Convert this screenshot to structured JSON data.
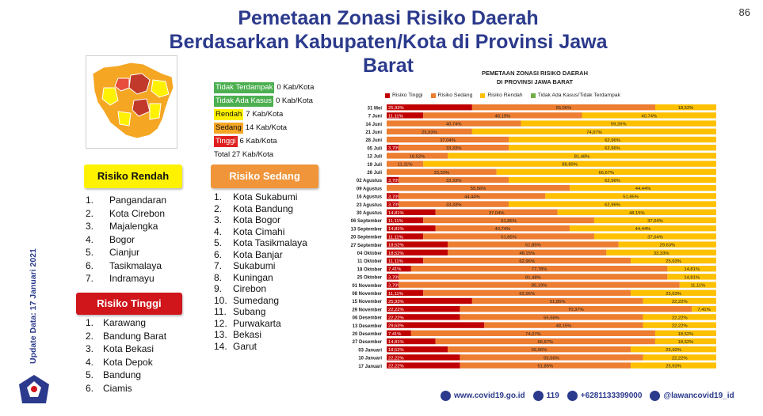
{
  "header": {
    "title_line1": "Pemetaan Zonasi Risiko Daerah",
    "title_line2": "Berdasarkan Kabupaten/Kota di Provinsi Jawa Barat",
    "page_number": "86"
  },
  "legend": {
    "tidak_terdampak": {
      "label": "Tidak Terdampak",
      "value": "0 Kab/Kota"
    },
    "tidak_ada_kasus": {
      "label": "Tidak Ada Kasus",
      "value": "0 Kab/Kota"
    },
    "rendah": {
      "label": "Rendah",
      "value": "7  Kab/Kota"
    },
    "sedang": {
      "label": "Sedang",
      "value": "14 Kab/Kota"
    },
    "tinggi": {
      "label": "Tinggi",
      "value": "6  Kab/Kota"
    },
    "total": "Total 27 Kab/Kota"
  },
  "risiko_rendah": {
    "title": "Risiko Rendah",
    "items": [
      {
        "n": "1.",
        "name": "Pangandaran"
      },
      {
        "n": "2.",
        "name": "Kota Cirebon"
      },
      {
        "n": "3.",
        "name": "Majalengka"
      },
      {
        "n": "4.",
        "name": "Bogor"
      },
      {
        "n": "5.",
        "name": "Cianjur"
      },
      {
        "n": "6.",
        "name": "Tasikmalaya"
      },
      {
        "n": "7.",
        "name": "Indramayu"
      }
    ]
  },
  "risiko_tinggi": {
    "title": "Risiko Tinggi",
    "items": [
      {
        "n": "1.",
        "name": "Karawang"
      },
      {
        "n": "2.",
        "name": "Bandung Barat"
      },
      {
        "n": "3.",
        "name": "Kota Bekasi"
      },
      {
        "n": "4.",
        "name": "Kota Depok"
      },
      {
        "n": "5.",
        "name": "Bandung"
      },
      {
        "n": "6.",
        "name": "Ciamis"
      }
    ]
  },
  "risiko_sedang": {
    "title": "Risiko Sedang",
    "items": [
      {
        "n": "1.",
        "name": "Kota Sukabumi"
      },
      {
        "n": "2.",
        "name": "Kota Bandung"
      },
      {
        "n": "3.",
        "name": "Kota Bogor"
      },
      {
        "n": "4.",
        "name": "Kota Cimahi"
      },
      {
        "n": "5.",
        "name": "Kota Tasikmalaya"
      },
      {
        "n": "6.",
        "name": "Kota Banjar"
      },
      {
        "n": "7.",
        "name": "Sukabumi"
      },
      {
        "n": "8.",
        "name": "Kuningan"
      },
      {
        "n": "9.",
        "name": "Cirebon"
      },
      {
        "n": "10.",
        "name": "Sumedang"
      },
      {
        "n": "11.",
        "name": "Subang"
      },
      {
        "n": "12.",
        "name": "Purwakarta"
      },
      {
        "n": "13.",
        "name": "Bekasi"
      },
      {
        "n": "14.",
        "name": "Garut"
      }
    ]
  },
  "update_date": "Update Data: 17 Januari 2021",
  "footer": {
    "website": "www.covid19.go.id",
    "hotline": "119",
    "whatsapp": "+6281133399000",
    "social": "@lawancovid19_id"
  },
  "colors": {
    "tinggi": "#c00000",
    "sedang": "#ed7d31",
    "rendah": "#ffc000",
    "tidak_ada": "#70ad47"
  },
  "chart_data": {
    "type": "bar",
    "orientation": "horizontal-stacked-100",
    "title_line1": "PEMETAAN ZONASI RISIKO DAERAH",
    "title_line2": "DI PROVINSI JAWA BARAT",
    "legend": [
      "Risiko Tinggi",
      "Risiko Sedang",
      "Risiko Rendah",
      "Tidak Ada Kasus/Tidak Terdampak"
    ],
    "legend_position": "top",
    "categories": [
      "31 Mei",
      "7 Juni",
      "14 Juni",
      "21 Juni",
      "28 Juni",
      "05 Juli",
      "12 Juli",
      "19 Juli",
      "26 Juli",
      "02 Agustus",
      "09 Agustus",
      "16 Agustus",
      "23 Agustus",
      "30 Agustus",
      "06 September",
      "13 September",
      "20 September",
      "27 September",
      "04 Oktober",
      "11 Oktober",
      "18 Oktober",
      "25 Oktober",
      "01 November",
      "08 November",
      "15 November",
      "29 November",
      "06 Desember",
      "13 Desember",
      "20 Desember",
      "27 Desember",
      "03 Januari",
      "10 Januari",
      "17 Januari"
    ],
    "series": [
      {
        "name": "Risiko Tinggi",
        "values": [
          25.93,
          11.11,
          0,
          0,
          0,
          3.7,
          0,
          0,
          0,
          3.7,
          0,
          3.7,
          3.7,
          14.81,
          11.11,
          14.81,
          11.11,
          18.52,
          18.52,
          11.11,
          7.41,
          3.7,
          3.7,
          11.11,
          25.93,
          22.22,
          22.22,
          29.63,
          7.41,
          14.81,
          18.52,
          22.22,
          22.22
        ]
      },
      {
        "name": "Risiko Sedang",
        "values": [
          55.56,
          48.15,
          40.74,
          25.93,
          37.04,
          33.33,
          18.52,
          11.11,
          33.33,
          33.33,
          55.56,
          44.44,
          33.33,
          37.04,
          51.85,
          40.74,
          51.85,
          51.85,
          48.15,
          62.96,
          77.78,
          81.48,
          85.19,
          62.96,
          51.85,
          70.37,
          55.56,
          48.15,
          74.07,
          66.67,
          55.56,
          55.56,
          51.85
        ]
      },
      {
        "name": "Risiko Rendah",
        "values": [
          18.52,
          40.74,
          59.26,
          74.07,
          62.96,
          62.96,
          81.48,
          88.89,
          66.67,
          62.96,
          44.44,
          51.85,
          62.96,
          48.15,
          37.04,
          44.44,
          37.04,
          29.63,
          33.33,
          25.93,
          14.81,
          14.81,
          11.11,
          25.93,
          22.22,
          7.41,
          22.22,
          22.22,
          18.52,
          18.52,
          25.93,
          22.22,
          25.93
        ]
      },
      {
        "name": "Tidak Ada Kasus/Tidak Terdampak",
        "values": [
          0,
          0,
          0,
          0,
          0,
          0,
          0,
          0,
          0,
          0,
          0,
          0,
          0,
          0,
          0,
          0,
          0,
          0,
          0,
          0,
          0,
          0,
          0,
          0,
          0,
          0,
          0,
          0,
          0,
          0,
          0,
          0,
          0
        ]
      }
    ],
    "xlim": [
      0,
      100
    ]
  }
}
